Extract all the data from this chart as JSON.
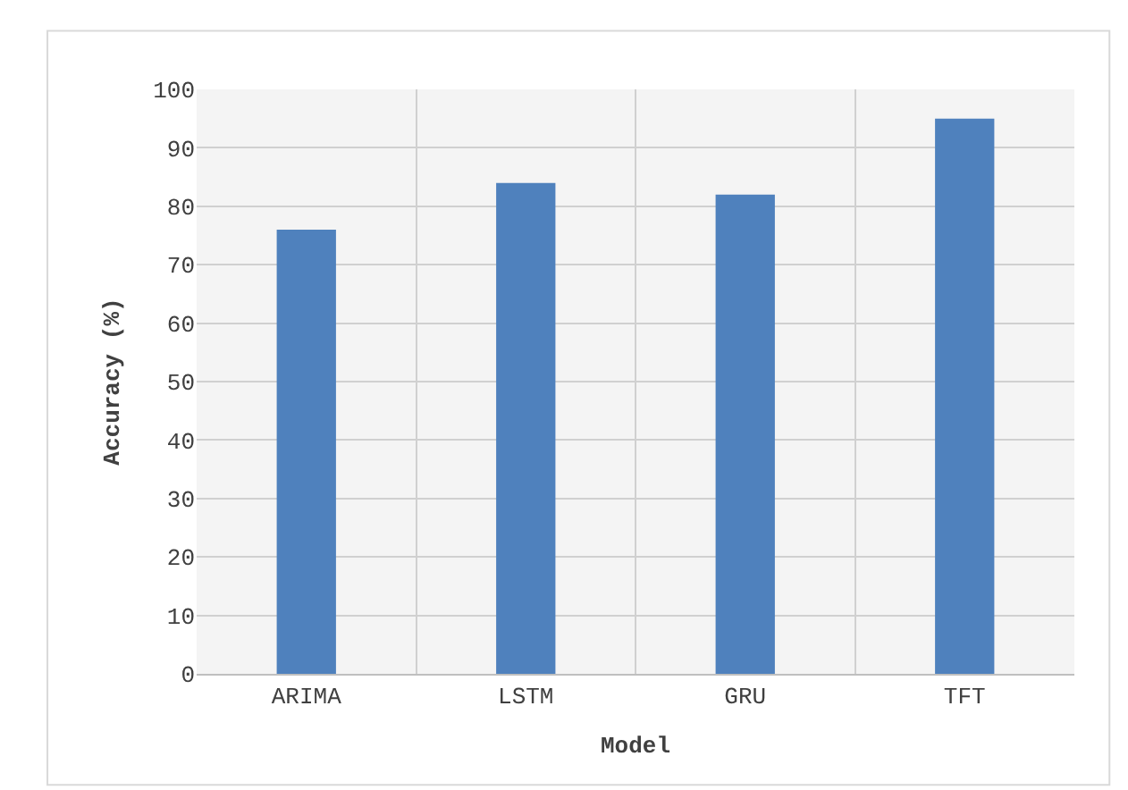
{
  "chart_data": {
    "type": "bar",
    "xlabel": "Model",
    "ylabel": "Accuracy (%)",
    "categories": [
      "ARIMA",
      "LSTM",
      "GRU",
      "TFT"
    ],
    "values": [
      76,
      84,
      82,
      95
    ],
    "color": "#4f81bd",
    "ylim": [
      0,
      100
    ],
    "yticks": [
      0,
      10,
      20,
      30,
      40,
      50,
      60,
      70,
      80,
      90,
      100
    ],
    "grid": true,
    "legend": false
  }
}
